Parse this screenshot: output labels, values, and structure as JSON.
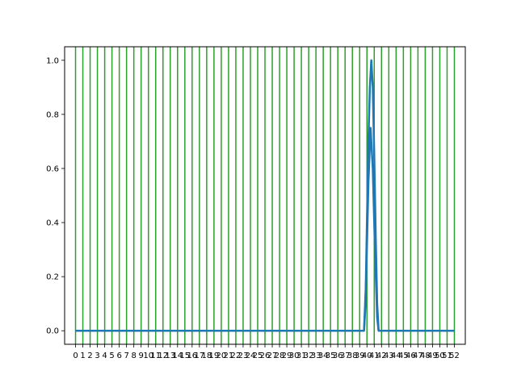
{
  "chart_data": {
    "type": "line",
    "title": "",
    "xlabel": "",
    "ylabel": "",
    "xlim": [
      -1.5,
      53.5
    ],
    "ylim": [
      -0.05,
      1.05
    ],
    "grid": false,
    "legend": "none",
    "x_ticks": [
      0,
      1,
      2,
      3,
      4,
      5,
      6,
      7,
      8,
      9,
      10,
      11,
      12,
      13,
      14,
      15,
      16,
      17,
      18,
      19,
      20,
      21,
      22,
      23,
      24,
      25,
      26,
      27,
      28,
      29,
      30,
      31,
      32,
      33,
      34,
      35,
      36,
      37,
      38,
      39,
      40,
      41,
      42,
      43,
      44,
      45,
      46,
      47,
      48,
      49,
      50,
      51,
      52
    ],
    "x_tick_labels": [
      "0",
      "1",
      "2",
      "3",
      "4",
      "5",
      "6",
      "7",
      "8",
      "9",
      "10",
      "11",
      "12",
      "13",
      "14",
      "15",
      "16",
      "17",
      "18",
      "19",
      "20",
      "21",
      "22",
      "23",
      "24",
      "25",
      "26",
      "27",
      "28",
      "29",
      "30",
      "31",
      "32",
      "33",
      "34",
      "35",
      "36",
      "37",
      "38",
      "39",
      "40",
      "41",
      "42",
      "43",
      "44",
      "45",
      "46",
      "47",
      "48",
      "49",
      "50",
      "51",
      "52"
    ],
    "y_ticks": [
      0.0,
      0.2,
      0.4,
      0.6,
      0.8,
      1.0
    ],
    "y_tick_labels": [
      "0.0",
      "0.2",
      "0.4",
      "0.6",
      "0.8",
      "1.0"
    ],
    "vlines": {
      "x": [
        0,
        1,
        2,
        3,
        4,
        5,
        6,
        7,
        8,
        9,
        10,
        11,
        12,
        13,
        14,
        15,
        16,
        17,
        18,
        19,
        20,
        21,
        22,
        23,
        24,
        25,
        26,
        27,
        28,
        29,
        30,
        31,
        32,
        33,
        34,
        35,
        36,
        37,
        38,
        39,
        40,
        41,
        42,
        43,
        44,
        45,
        46,
        47,
        48,
        49,
        50,
        51,
        52
      ],
      "color": "#2ca02c"
    },
    "series": [
      {
        "color": "#1f77b4",
        "points": [
          [
            0,
            0
          ],
          [
            39.6,
            0
          ],
          [
            39.8,
            0.1
          ],
          [
            40,
            0.4
          ],
          [
            40.2,
            0.7
          ],
          [
            40.4,
            0.9
          ],
          [
            40.6,
            1.0
          ],
          [
            40.8,
            0.9
          ],
          [
            41,
            0.65
          ],
          [
            41.2,
            0.35
          ],
          [
            41.4,
            0.1
          ],
          [
            41.6,
            0
          ],
          [
            52,
            0
          ]
        ]
      },
      {
        "color": "#1f77b4",
        "points": [
          [
            39.6,
            0
          ],
          [
            39.9,
            0.2
          ],
          [
            40.2,
            0.55
          ],
          [
            40.5,
            0.75
          ],
          [
            40.8,
            0.6
          ],
          [
            41.1,
            0.3
          ],
          [
            41.4,
            0.05
          ],
          [
            41.6,
            0
          ]
        ]
      }
    ]
  }
}
